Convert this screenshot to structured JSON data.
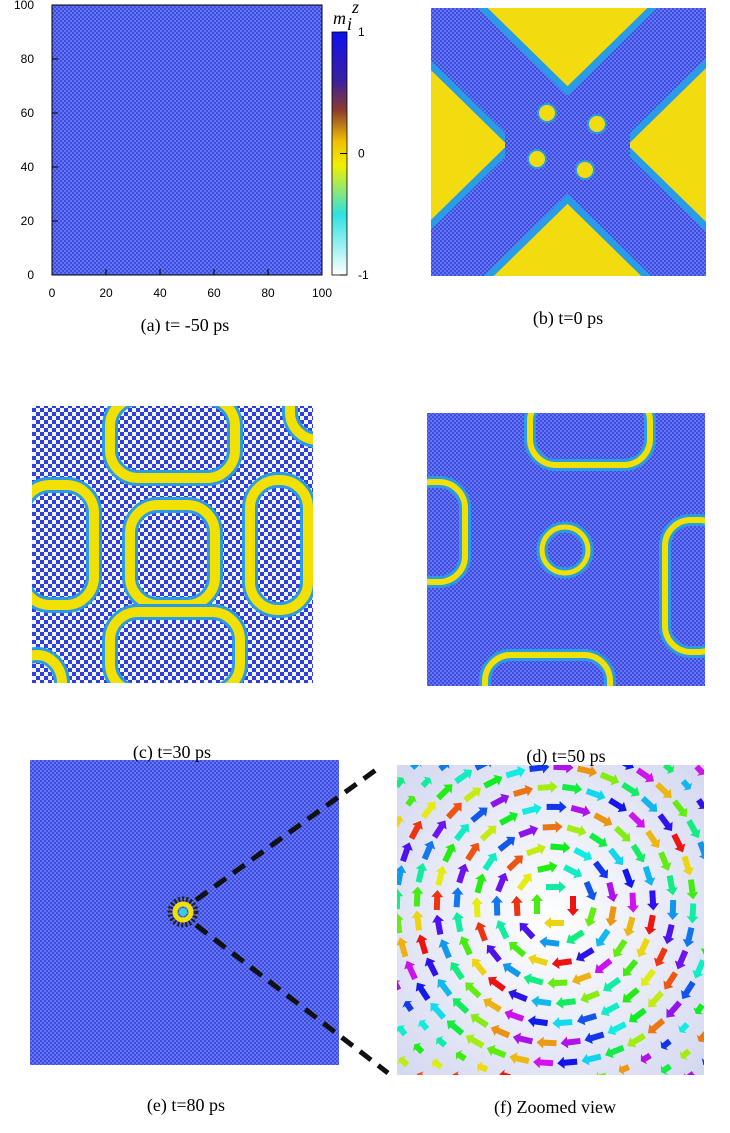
{
  "panel_a": {
    "caption": "(a) t= -50 ps",
    "xlim": [
      0,
      100
    ],
    "ylim": [
      0,
      100
    ],
    "xticks": [
      0,
      20,
      40,
      60,
      80,
      100
    ],
    "yticks": [
      0,
      20,
      40,
      60,
      80,
      100
    ],
    "colorbar": {
      "label": "m",
      "label_sub": "i",
      "label_sup": "z",
      "lim": [
        -1,
        1
      ],
      "ticks": [
        -1,
        0,
        1
      ]
    }
  },
  "panel_b": {
    "caption": "(b) t=0 ps"
  },
  "panel_c": {
    "caption": "(c) t=30 ps"
  },
  "panel_d": {
    "caption": "(d) t=50 ps"
  },
  "panel_e": {
    "caption": "(e) t=80 ps"
  },
  "panel_f": {
    "caption": "(f) Zoomed view"
  }
}
